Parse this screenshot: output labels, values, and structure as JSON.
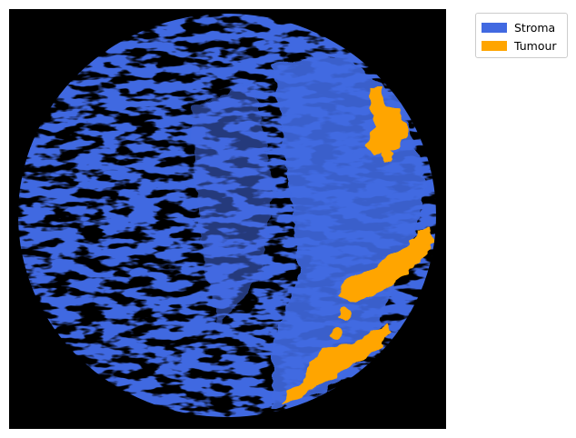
{
  "image": {
    "background_color": "#000000",
    "description_type": "segmentation-mask"
  },
  "legend": {
    "items": [
      {
        "label": "Stroma",
        "color": "#4169E1"
      },
      {
        "label": "Tumour",
        "color": "#FFA500"
      }
    ]
  }
}
